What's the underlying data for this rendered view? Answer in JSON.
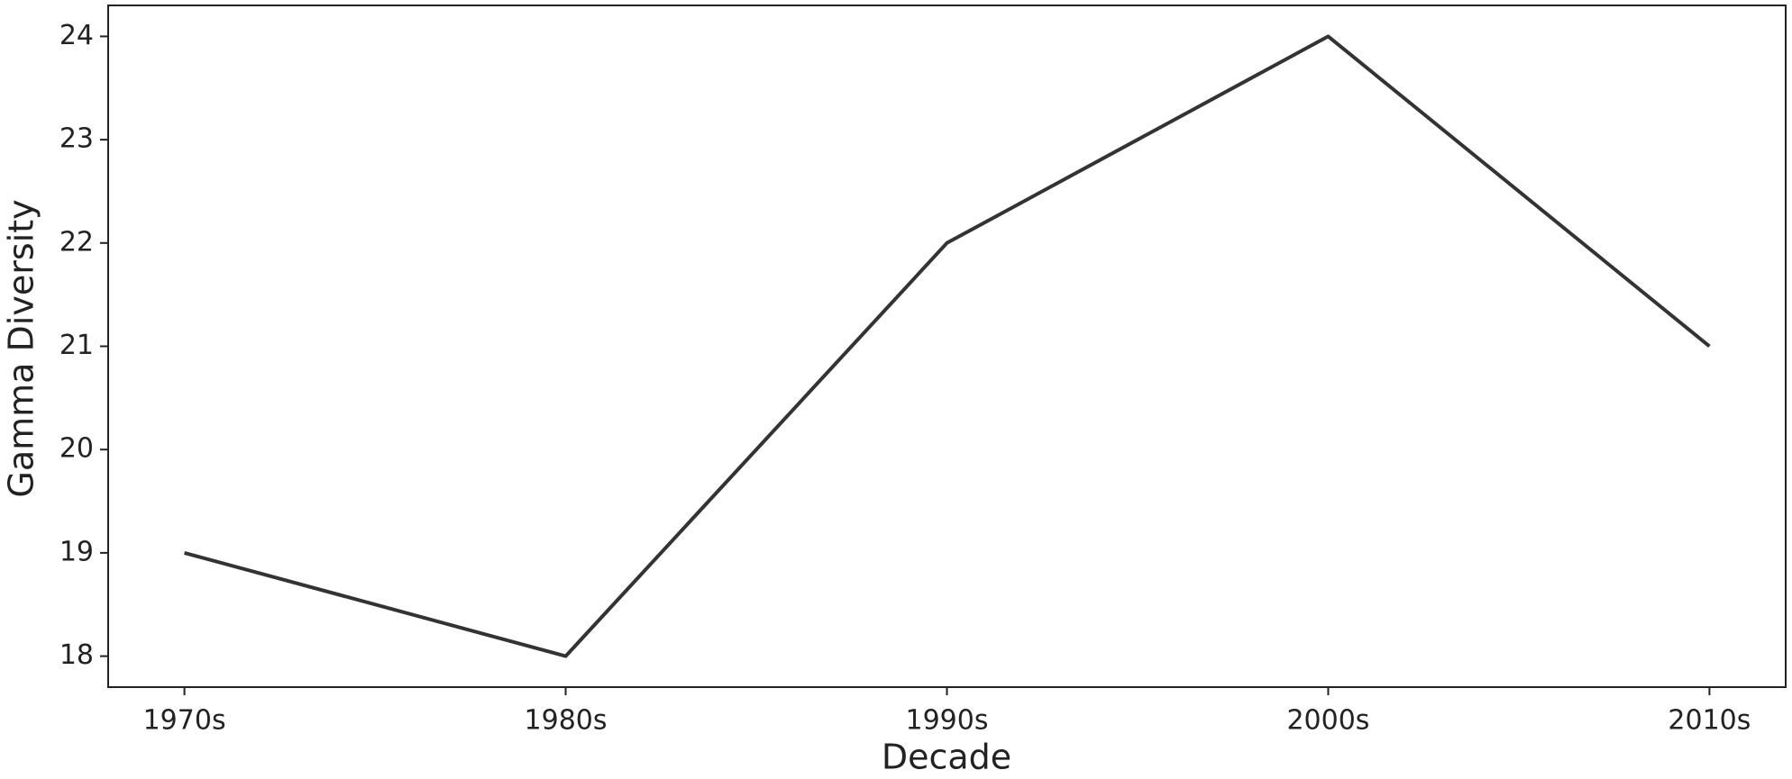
{
  "chart_data": {
    "type": "line",
    "x_label": "Decade",
    "y_label": "Gamma Diversity",
    "categories": [
      "1970s",
      "1980s",
      "1990s",
      "2000s",
      "2010s"
    ],
    "series": [
      {
        "name": "Gamma Diversity",
        "color": "#333333",
        "values": [
          19,
          18,
          22,
          24,
          21
        ]
      }
    ],
    "ylim": [
      17.7,
      24.3
    ],
    "yticks": [
      18,
      19,
      20,
      21,
      22,
      23,
      24
    ],
    "grid": false
  }
}
